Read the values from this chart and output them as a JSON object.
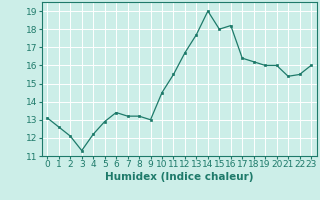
{
  "x": [
    0,
    1,
    2,
    3,
    4,
    5,
    6,
    7,
    8,
    9,
    10,
    11,
    12,
    13,
    14,
    15,
    16,
    17,
    18,
    19,
    20,
    21,
    22,
    23
  ],
  "y": [
    13.1,
    12.6,
    12.1,
    11.3,
    12.2,
    12.9,
    13.4,
    13.2,
    13.2,
    13.0,
    14.5,
    15.5,
    16.7,
    17.7,
    19.0,
    18.0,
    18.2,
    16.4,
    16.2,
    16.0,
    16.0,
    15.4,
    15.5,
    16.0
  ],
  "xlabel": "Humidex (Indice chaleur)",
  "ylim": [
    11,
    19.5
  ],
  "xlim": [
    -0.5,
    23.5
  ],
  "yticks": [
    11,
    12,
    13,
    14,
    15,
    16,
    17,
    18,
    19
  ],
  "xticks": [
    0,
    1,
    2,
    3,
    4,
    5,
    6,
    7,
    8,
    9,
    10,
    11,
    12,
    13,
    14,
    15,
    16,
    17,
    18,
    19,
    20,
    21,
    22,
    23
  ],
  "line_color": "#1e7a6a",
  "marker_color": "#1e7a6a",
  "bg_color": "#cceee8",
  "grid_color": "#ffffff",
  "axes_color": "#1e7a6a",
  "tick_label_color": "#1e7a6a",
  "xlabel_color": "#1e7a6a",
  "xlabel_fontsize": 7.5,
  "tick_fontsize": 6.5
}
